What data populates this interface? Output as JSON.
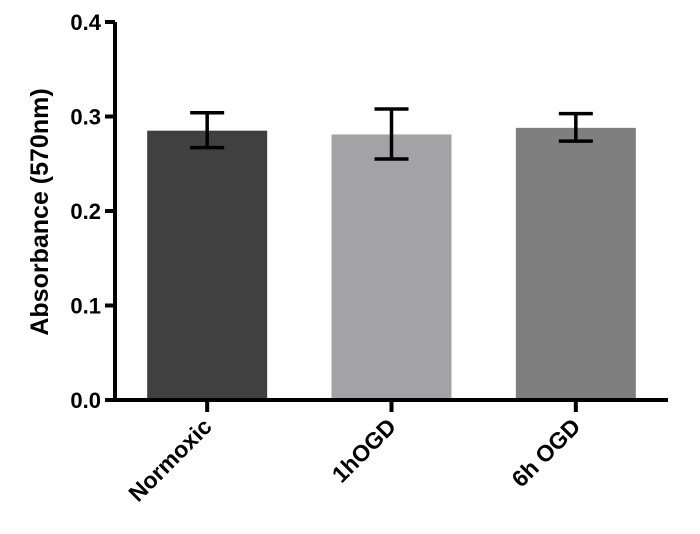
{
  "chart_data": {
    "type": "bar",
    "title": "",
    "xlabel": "",
    "ylabel": "Absorbance (570nm)",
    "ylim": [
      0,
      0.4
    ],
    "yticks": [
      {
        "value": 0.0,
        "label": "0.0"
      },
      {
        "value": 0.1,
        "label": "0.1"
      },
      {
        "value": 0.2,
        "label": "0.2"
      },
      {
        "value": 0.3,
        "label": "0.3"
      },
      {
        "value": 0.4,
        "label": "0.4"
      }
    ],
    "categories": [
      "Normoxic",
      "1hOGD",
      "6h OGD"
    ],
    "values": [
      0.285,
      0.281,
      0.288
    ],
    "error_low": [
      0.267,
      0.255,
      0.274
    ],
    "error_high": [
      0.304,
      0.308,
      0.303
    ],
    "colors": [
      "#404040",
      "#a3a3a5",
      "#7f7f7f"
    ],
    "grid": false,
    "legend": "none"
  }
}
